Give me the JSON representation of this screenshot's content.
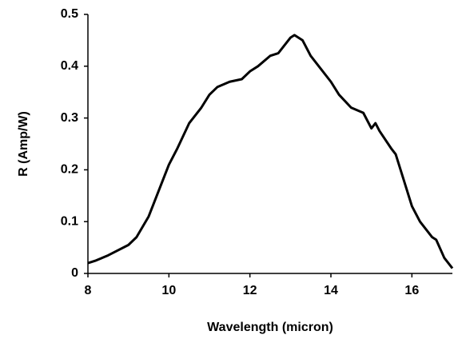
{
  "chart_data": {
    "type": "line",
    "xlabel": "Wavelength (micron)",
    "ylabel": "R (Amp/W)",
    "x": [
      8,
      8.2,
      8.5,
      9,
      9.2,
      9.5,
      9.8,
      10,
      10.2,
      10.5,
      10.8,
      11,
      11.2,
      11.5,
      11.8,
      12,
      12.2,
      12.5,
      12.7,
      13,
      13.1,
      13.3,
      13.5,
      13.7,
      14,
      14.2,
      14.5,
      14.8,
      15,
      15.1,
      15.2,
      15.5,
      15.6,
      15.8,
      16,
      16.2,
      16.5,
      16.6,
      16.8,
      17
    ],
    "series": [
      {
        "color": "#000000",
        "values": [
          0.02,
          0.025,
          0.035,
          0.055,
          0.07,
          0.11,
          0.17,
          0.21,
          0.24,
          0.29,
          0.32,
          0.345,
          0.36,
          0.37,
          0.375,
          0.39,
          0.4,
          0.42,
          0.425,
          0.455,
          0.46,
          0.45,
          0.42,
          0.4,
          0.37,
          0.345,
          0.32,
          0.31,
          0.28,
          0.29,
          0.275,
          0.24,
          0.23,
          0.18,
          0.13,
          0.1,
          0.07,
          0.065,
          0.03,
          0.01
        ]
      }
    ],
    "xlim": [
      8,
      17
    ],
    "xticks": [
      8,
      10,
      12,
      14,
      16
    ],
    "ylim": [
      0,
      0.5
    ],
    "yticks": [
      0,
      0.1,
      0.2,
      0.3,
      0.4,
      0.5
    ]
  }
}
